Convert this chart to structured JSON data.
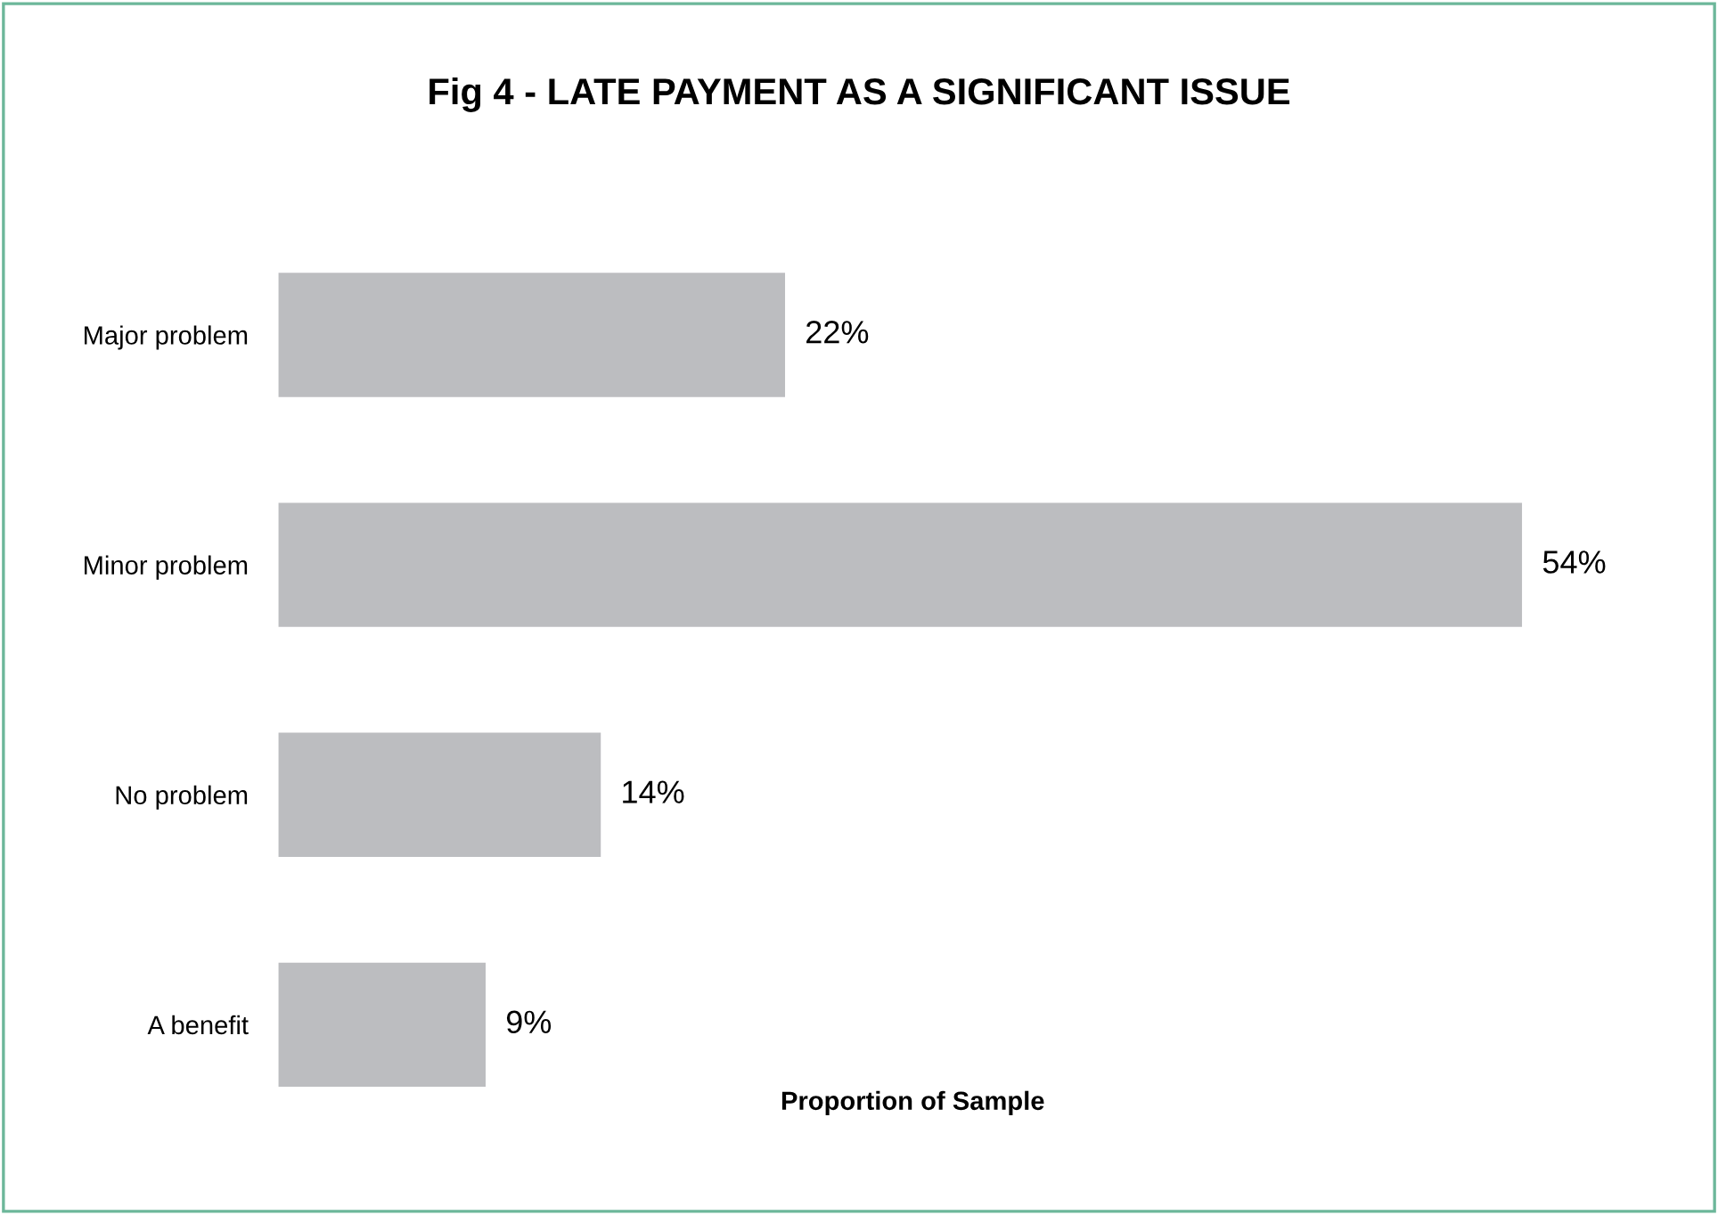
{
  "chart_data": {
    "type": "bar",
    "orientation": "horizontal",
    "title": "Fig 4 - LATE PAYMENT AS A SIGNIFICANT ISSUE",
    "xlabel": "Proportion of Sample",
    "categories": [
      "Major problem",
      "Minor problem",
      "No problem",
      "A benefit"
    ],
    "values": [
      22,
      54,
      14,
      9
    ],
    "value_labels": [
      "22%",
      "54%",
      "14%",
      "9%"
    ],
    "color": "#bcbdc0",
    "grid": false,
    "legend": false
  }
}
